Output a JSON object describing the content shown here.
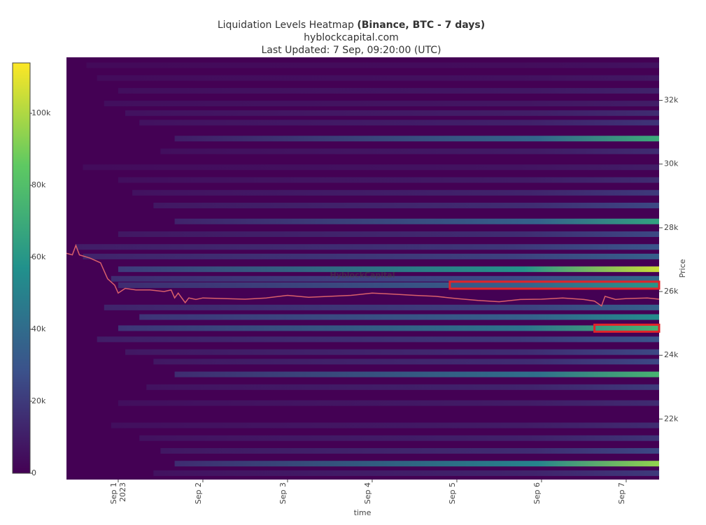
{
  "chart_data": {
    "type": "heatmap",
    "title": "Liquidation Levels Heatmap ",
    "title_bold": "(Binance, BTC - 7 days)",
    "subtitle": "hyblockcapital.com",
    "updated": "Last Updated: 7 Sep, 09:20:00 (UTC)",
    "watermark": "HyblockCapital",
    "x_label": "time",
    "y_label": "Price",
    "xlim": [
      "2023-08-31 09:20",
      "2023-09-07 09:20"
    ],
    "xticks": [
      {
        "value": "2023-09-01 00:00",
        "label": "Sep 1"
      },
      {
        "value": "2023-09-02 00:00",
        "label": "Sep 2"
      },
      {
        "value": "2023-09-03 00:00",
        "label": "Sep 3"
      },
      {
        "value": "2023-09-04 00:00",
        "label": "Sep 4"
      },
      {
        "value": "2023-09-05 00:00",
        "label": "Sep 5"
      },
      {
        "value": "2023-09-06 00:00",
        "label": "Sep 6"
      },
      {
        "value": "2023-09-07 00:00",
        "label": "Sep 7"
      }
    ],
    "xtick_year": "2023",
    "ylim": [
      20100,
      33350
    ],
    "yticks": [
      {
        "value": 22000,
        "label": "22k"
      },
      {
        "value": 24000,
        "label": "24k"
      },
      {
        "value": 26000,
        "label": "26k"
      },
      {
        "value": 28000,
        "label": "28k"
      },
      {
        "value": 30000,
        "label": "30k"
      },
      {
        "value": 32000,
        "label": "32k"
      }
    ],
    "zlim": [
      0,
      114000
    ],
    "zticks": [
      0,
      {
        "value": 20000,
        "label": "20k"
      },
      {
        "value": 40000,
        "label": "40k"
      },
      {
        "value": 60000,
        "label": "60k"
      },
      {
        "value": 80000,
        "label": "80k"
      },
      {
        "value": 100000,
        "label": "100k"
      }
    ],
    "colorscale": [
      "#440154",
      "#3b528b",
      "#21918c",
      "#5ec962",
      "#fde725"
    ],
    "bands": [
      {
        "price": 33100,
        "start": "2023-08-31 15:00",
        "values": [
          3000,
          6000
        ]
      },
      {
        "price": 32700,
        "start": "2023-08-31 18:00",
        "values": [
          4000,
          8000
        ]
      },
      {
        "price": 32300,
        "start": "2023-09-01 00:00",
        "values": [
          5000,
          12000
        ]
      },
      {
        "price": 31900,
        "start": "2023-08-31 20:00",
        "values": [
          5000,
          10000
        ]
      },
      {
        "price": 31600,
        "start": "2023-09-01 02:00",
        "values": [
          6000,
          15000
        ]
      },
      {
        "price": 31300,
        "start": "2023-09-01 06:00",
        "values": [
          6000,
          18000
        ]
      },
      {
        "price": 30800,
        "start": "2023-09-01 16:00",
        "values": [
          10000,
          70000
        ]
      },
      {
        "price": 30400,
        "start": "2023-09-01 12:00",
        "values": [
          5000,
          15000
        ]
      },
      {
        "price": 29900,
        "start": "2023-08-31 14:00",
        "values": [
          4000,
          10000
        ]
      },
      {
        "price": 29500,
        "start": "2023-09-01 00:00",
        "values": [
          5000,
          15000
        ]
      },
      {
        "price": 29100,
        "start": "2023-09-01 04:00",
        "values": [
          6000,
          20000
        ]
      },
      {
        "price": 28700,
        "start": "2023-09-01 10:00",
        "values": [
          8000,
          25000
        ]
      },
      {
        "price": 28200,
        "start": "2023-09-01 16:00",
        "values": [
          12000,
          65000
        ]
      },
      {
        "price": 27800,
        "start": "2023-09-01 00:00",
        "values": [
          8000,
          25000
        ]
      },
      {
        "price": 27400,
        "start": "2023-08-31 12:00",
        "values": [
          10000,
          30000
        ]
      },
      {
        "price": 27100,
        "start": "2023-08-31 14:00",
        "values": [
          12000,
          35000
        ]
      },
      {
        "price": 26700,
        "start": "2023-09-01 00:00",
        "values": [
          20000,
          105000
        ]
      },
      {
        "price": 26400,
        "start": "2023-08-31 22:00",
        "values": [
          15000,
          40000
        ]
      },
      {
        "price": 26200,
        "start": "2023-09-01 00:00",
        "values": [
          15000,
          60000
        ]
      },
      {
        "price": 25500,
        "start": "2023-08-31 20:00",
        "values": [
          12000,
          35000
        ]
      },
      {
        "price": 25200,
        "start": "2023-09-01 06:00",
        "values": [
          18000,
          55000
        ]
      },
      {
        "price": 24850,
        "start": "2023-09-01 00:00",
        "values": [
          18000,
          75000
        ]
      },
      {
        "price": 24500,
        "start": "2023-08-31 18:00",
        "values": [
          10000,
          30000
        ]
      },
      {
        "price": 24100,
        "start": "2023-09-01 02:00",
        "values": [
          8000,
          25000
        ]
      },
      {
        "price": 23800,
        "start": "2023-09-01 10:00",
        "values": [
          8000,
          25000
        ]
      },
      {
        "price": 23400,
        "start": "2023-09-01 16:00",
        "values": [
          15000,
          75000
        ]
      },
      {
        "price": 23000,
        "start": "2023-09-01 08:00",
        "values": [
          6000,
          20000
        ]
      },
      {
        "price": 22500,
        "start": "2023-09-01 00:00",
        "values": [
          5000,
          15000
        ]
      },
      {
        "price": 21800,
        "start": "2023-08-31 22:00",
        "values": [
          5000,
          15000
        ]
      },
      {
        "price": 21400,
        "start": "2023-09-01 06:00",
        "values": [
          6000,
          18000
        ]
      },
      {
        "price": 21000,
        "start": "2023-09-01 12:00",
        "values": [
          8000,
          25000
        ]
      },
      {
        "price": 20600,
        "start": "2023-09-01 16:00",
        "values": [
          15000,
          95000
        ]
      },
      {
        "price": 20300,
        "start": "2023-09-01 10:00",
        "values": [
          6000,
          20000
        ]
      }
    ],
    "price_line": {
      "color": "#d9606a",
      "x": [
        "2023-08-31 09:20",
        "2023-08-31 11:00",
        "2023-08-31 12:00",
        "2023-08-31 13:00",
        "2023-08-31 16:00",
        "2023-08-31 19:00",
        "2023-08-31 21:00",
        "2023-08-31 23:00",
        "2023-09-01 00:00",
        "2023-09-01 02:00",
        "2023-09-01 05:00",
        "2023-09-01 09:00",
        "2023-09-01 13:00",
        "2023-09-01 15:00",
        "2023-09-01 16:00",
        "2023-09-01 17:00",
        "2023-09-01 19:00",
        "2023-09-01 20:00",
        "2023-09-01 22:00",
        "2023-09-02 00:00",
        "2023-09-02 06:00",
        "2023-09-02 12:00",
        "2023-09-02 18:00",
        "2023-09-03 00:00",
        "2023-09-03 06:00",
        "2023-09-03 12:00",
        "2023-09-03 18:00",
        "2023-09-04 00:00",
        "2023-09-04 06:00",
        "2023-09-04 12:00",
        "2023-09-04 18:00",
        "2023-09-05 00:00",
        "2023-09-05 06:00",
        "2023-09-05 12:00",
        "2023-09-05 18:00",
        "2023-09-06 00:00",
        "2023-09-06 06:00",
        "2023-09-06 12:00",
        "2023-09-06 15:00",
        "2023-09-06 17:00",
        "2023-09-06 18:00",
        "2023-09-06 21:00",
        "2023-09-07 00:00",
        "2023-09-07 06:00",
        "2023-09-07 09:20"
      ],
      "values": [
        27200,
        27150,
        27450,
        27150,
        27050,
        26900,
        26400,
        26200,
        25950,
        26100,
        26050,
        26050,
        26000,
        26050,
        25800,
        25950,
        25650,
        25800,
        25750,
        25800,
        25780,
        25760,
        25800,
        25880,
        25820,
        25850,
        25880,
        25950,
        25920,
        25880,
        25850,
        25780,
        25720,
        25680,
        25750,
        25760,
        25800,
        25750,
        25700,
        25550,
        25850,
        25750,
        25780,
        25800,
        25760
      ]
    },
    "highlights": [
      {
        "price": 26200,
        "start": "2023-09-04 22:00",
        "color": "#e0242a"
      },
      {
        "price": 24850,
        "start": "2023-09-06 15:00",
        "color": "#e0242a"
      }
    ]
  }
}
